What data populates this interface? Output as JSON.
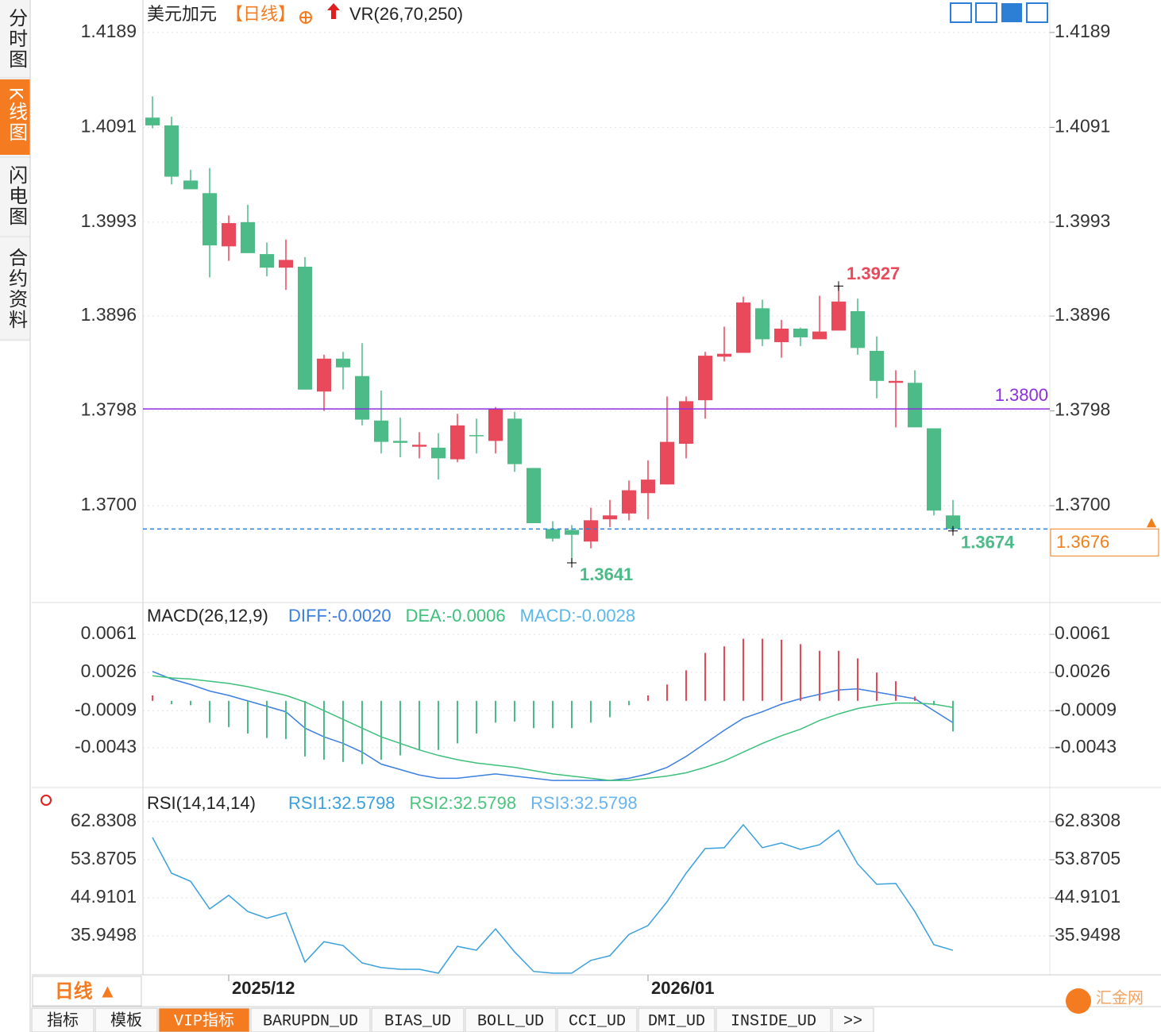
{
  "sidebar": [
    "分时图",
    "K线图",
    "闪电图",
    "合约资料"
  ],
  "chart_data": [
    {
      "type": "candlestick",
      "title": "美元加元",
      "period": "【日线】",
      "indicator": "VR(26,70,250)",
      "categories": [
        null,
        null,
        null,
        null,
        "2025/12",
        null,
        null,
        null,
        null,
        null,
        null,
        null,
        null,
        null,
        null,
        null,
        null,
        null,
        null,
        null,
        null,
        null,
        null,
        null,
        null,
        null,
        "2026/01",
        null,
        null,
        null,
        null,
        null,
        null,
        null,
        null,
        null,
        null,
        null,
        null,
        null,
        null,
        null,
        null
      ],
      "open": [
        1.4101,
        1.4093,
        1.4036,
        1.4023,
        1.3968,
        1.3993,
        1.396,
        1.3946,
        1.3947,
        1.3818,
        1.3852,
        1.3834,
        1.3788,
        1.3767,
        1.3761,
        1.376,
        1.3748,
        1.3773,
        1.3767,
        1.379,
        1.3739,
        1.3676,
        1.3675,
        1.3663,
        1.3686,
        1.3692,
        1.3713,
        1.3722,
        1.3764,
        1.3809,
        1.3854,
        1.3858,
        1.3904,
        1.3869,
        1.3883,
        1.3872,
        1.3881,
        1.3901,
        1.386,
        1.3827,
        1.3827,
        1.378,
        1.369
      ],
      "high": [
        1.4123,
        1.4102,
        1.4047,
        1.4049,
        1.4,
        1.4011,
        1.3972,
        1.3975,
        1.3957,
        1.3856,
        1.3859,
        1.3868,
        1.3819,
        1.3791,
        1.3776,
        1.3775,
        1.3795,
        1.379,
        1.3802,
        1.3797,
        1.3739,
        1.3684,
        1.368,
        1.3698,
        1.3706,
        1.3726,
        1.3747,
        1.3813,
        1.3813,
        1.3859,
        1.3885,
        1.3916,
        1.3913,
        1.3892,
        1.3884,
        1.3917,
        1.3927,
        1.3914,
        1.3875,
        1.384,
        1.384,
        1.378,
        1.3706
      ],
      "low": [
        1.409,
        1.4032,
        1.4027,
        1.3936,
        1.3953,
        1.3961,
        1.3937,
        1.3923,
        1.382,
        1.3798,
        1.382,
        1.3783,
        1.3754,
        1.375,
        1.3749,
        1.3727,
        1.3745,
        1.3754,
        1.3754,
        1.3735,
        1.3682,
        1.3663,
        1.3641,
        1.3656,
        1.3678,
        1.3685,
        1.3686,
        1.3722,
        1.3749,
        1.379,
        1.3849,
        1.3858,
        1.3865,
        1.3853,
        1.3865,
        1.3872,
        1.3881,
        1.3856,
        1.3811,
        1.3781,
        1.3781,
        1.369,
        1.3674
      ],
      "close": [
        1.4093,
        1.404,
        1.4027,
        1.3969,
        1.3992,
        1.3961,
        1.3946,
        1.3954,
        1.382,
        1.3852,
        1.3843,
        1.3789,
        1.3766,
        1.3765,
        1.3763,
        1.3749,
        1.3783,
        1.3772,
        1.38,
        1.3743,
        1.3682,
        1.3666,
        1.367,
        1.3685,
        1.369,
        1.3716,
        1.3727,
        1.3766,
        1.3808,
        1.3855,
        1.3857,
        1.391,
        1.3872,
        1.3883,
        1.3874,
        1.388,
        1.3911,
        1.3863,
        1.3829,
        1.3829,
        1.3781,
        1.3695,
        1.3676
      ],
      "up_color": "#e8495b",
      "down_color": "#4cbb87",
      "ylim": [
        1.36,
        1.4225
      ],
      "yticks": [
        1.4189,
        1.4091,
        1.3993,
        1.3896,
        1.3798,
        {
          "value": 1.37,
          "label": "1.3700"
        }
      ],
      "grid": true,
      "hline": {
        "value": 1.38,
        "label": "1.3800",
        "color": "#8e2de2"
      },
      "last_price": {
        "value": 1.3676,
        "label": "1.3676",
        "color": "#f07f1a"
      },
      "annotations": [
        {
          "text": "1.3927",
          "value": 1.3927,
          "color": "#e8495b"
        },
        {
          "text": "1.3641",
          "value": 1.3641,
          "color": "#4cbb87"
        },
        {
          "text": "1.3674",
          "value": 1.3674,
          "color": "#4cbb87"
        }
      ]
    },
    {
      "type": "combo",
      "title": "MACD(26,12,9)",
      "series": [
        {
          "name": "DIFF:-0.0020",
          "style": "line",
          "color": "#3b7fe0",
          "values": [
            0.0027,
            0.002,
            0.0015,
            0.0009,
            0.0005,
            0,
            -0.0005,
            -0.001,
            -0.0025,
            -0.0033,
            -0.0039,
            -0.0047,
            -0.0058,
            -0.0063,
            -0.0068,
            -0.0071,
            -0.0071,
            -0.0069,
            -0.0067,
            -0.0069,
            -0.0071,
            -0.0073,
            -0.0073,
            -0.0073,
            -0.0073,
            -0.0071,
            -0.0067,
            -0.0061,
            -0.0051,
            -0.0039,
            -0.0027,
            -0.0016,
            -0.001,
            -0.0003,
            0.0002,
            0.0006,
            0.001,
            0.0011,
            0.0008,
            0.0005,
            0.0002,
            -0.0009,
            -0.002
          ]
        },
        {
          "name": "DEA:-0.0006",
          "style": "line",
          "color": "#3cc07a",
          "values": [
            0.0023,
            0.0021,
            0.002,
            0.0018,
            0.0016,
            0.0013,
            0.0009,
            0.0005,
            -0.0001,
            -0.0009,
            -0.0017,
            -0.0025,
            -0.0033,
            -0.0039,
            -0.0045,
            -0.005,
            -0.0054,
            -0.0057,
            -0.0059,
            -0.0061,
            -0.0064,
            -0.0067,
            -0.0069,
            -0.0071,
            -0.0073,
            -0.0073,
            -0.0071,
            -0.0069,
            -0.0066,
            -0.0061,
            -0.0055,
            -0.0047,
            -0.0039,
            -0.0032,
            -0.0026,
            -0.0018,
            -0.0012,
            -0.0007,
            -0.0004,
            -0.0002,
            -0.0002,
            -0.0003,
            -0.0006
          ]
        },
        {
          "name": "MACD:-0.0028",
          "style": "bar",
          "color": "#5ab8e8",
          "values": [
            0.0005,
            -0.0003,
            -0.0004,
            -0.002,
            -0.0024,
            -0.003,
            -0.0034,
            -0.0035,
            -0.0051,
            -0.0054,
            -0.0056,
            -0.0058,
            -0.0054,
            -0.005,
            -0.0045,
            -0.0045,
            -0.0039,
            -0.003,
            -0.002,
            -0.0019,
            -0.0025,
            -0.0025,
            -0.0025,
            -0.002,
            -0.0015,
            -0.0004,
            0.0005,
            0.0015,
            0.0028,
            0.0044,
            0.005,
            0.0057,
            0.0057,
            0.0056,
            0.0052,
            0.0046,
            0.0046,
            0.0039,
            0.0026,
            0.0018,
            0.0004,
            -0.0004,
            -0.0028
          ]
        }
      ],
      "up_color": "#e8495b",
      "down_color": "#4cbb87",
      "ylim": [
        -0.0078,
        0.0088
      ],
      "yticks": [
        0.0061,
        0.0026,
        -0.0009,
        -0.0043
      ],
      "grid": true
    },
    {
      "type": "line",
      "title": "RSI(14,14,14)",
      "series": [
        {
          "name": "RSI1:32.5798",
          "color": "#3aa0dc",
          "values": [
            59.1,
            50.7,
            48.8,
            42.3,
            45.5,
            41.7,
            40.1,
            41.4,
            29.8,
            34.6,
            33.7,
            29.6,
            28.5,
            28.1,
            28.1,
            27.2,
            33.5,
            32.6,
            37.6,
            32.2,
            27.6,
            27.2,
            27.2,
            30.2,
            31.3,
            36.3,
            38.4,
            44.0,
            50.7,
            56.5,
            56.7,
            62.1,
            56.7,
            57.8,
            56.3,
            57.4,
            60.8,
            52.9,
            48.1,
            48.3,
            41.7,
            33.9,
            32.5798
          ]
        },
        {
          "name": "RSI2:32.5798",
          "color": "#4cc47e"
        },
        {
          "name": "RSI3:32.5798",
          "color": "#6ab4ee"
        }
      ],
      "ylim": [
        26.8,
        70.3
      ],
      "yticks": [
        62.8308,
        53.8705,
        44.9101,
        35.9498
      ],
      "grid": true
    }
  ],
  "period_button": "日线 ▲",
  "tabs": [
    "指标",
    "模板",
    "VIP指标",
    "BARUPDN_UD",
    "BIAS_UD",
    "BOLL_UD",
    "CCI_UD",
    "DMI_UD",
    "INSIDE_UD",
    ">>"
  ],
  "watermark": "汇金网"
}
